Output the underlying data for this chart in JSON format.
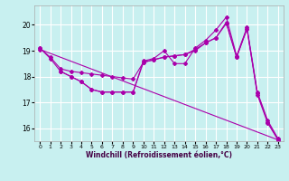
{
  "xlabel": "Windchill (Refroidissement éolien,°C)",
  "background_color": "#c8f0f0",
  "line_color": "#aa00aa",
  "grid_color": "#ffffff",
  "ylim": [
    15.5,
    20.75
  ],
  "xlim": [
    -0.5,
    23.5
  ],
  "yticks": [
    16,
    17,
    18,
    19,
    20
  ],
  "xticks": [
    0,
    1,
    2,
    3,
    4,
    5,
    6,
    7,
    8,
    9,
    10,
    11,
    12,
    13,
    14,
    15,
    16,
    17,
    18,
    19,
    20,
    21,
    22,
    23
  ],
  "lines": [
    {
      "x": [
        0,
        1,
        2,
        3,
        4,
        5,
        6,
        7,
        8,
        9,
        10,
        11,
        12,
        13,
        14,
        15,
        16,
        17,
        18,
        19,
        20,
        21,
        22,
        23
      ],
      "y": [
        19.1,
        18.7,
        18.2,
        18.0,
        17.8,
        17.5,
        17.4,
        17.4,
        17.4,
        17.4,
        18.6,
        18.7,
        19.0,
        18.5,
        18.5,
        19.1,
        19.4,
        19.8,
        20.3,
        18.8,
        19.9,
        17.4,
        16.3,
        15.6
      ]
    },
    {
      "x": [
        0,
        1,
        2,
        3,
        4,
        5,
        6,
        7,
        8,
        9,
        10,
        11,
        12,
        13,
        14,
        15,
        16,
        17,
        18,
        19,
        20,
        21,
        22,
        23
      ],
      "y": [
        19.1,
        18.75,
        18.3,
        18.2,
        18.15,
        18.1,
        18.05,
        18.0,
        17.95,
        17.9,
        18.55,
        18.65,
        18.75,
        18.8,
        18.85,
        19.05,
        19.3,
        19.5,
        20.1,
        18.75,
        19.85,
        17.35,
        16.25,
        15.55
      ]
    },
    {
      "x": [
        2,
        3,
        4,
        5,
        6,
        7,
        8,
        9,
        10,
        11,
        12,
        13,
        14,
        15,
        16,
        17,
        18,
        19,
        20,
        21,
        22,
        23
      ],
      "y": [
        18.2,
        18.0,
        17.8,
        17.5,
        17.4,
        17.4,
        17.4,
        17.4,
        18.55,
        18.65,
        18.75,
        18.8,
        18.85,
        19.0,
        19.3,
        19.5,
        20.05,
        18.75,
        19.85,
        17.3,
        16.2,
        15.55
      ]
    },
    {
      "x": [
        0,
        23
      ],
      "y": [
        19.05,
        15.55
      ]
    }
  ]
}
